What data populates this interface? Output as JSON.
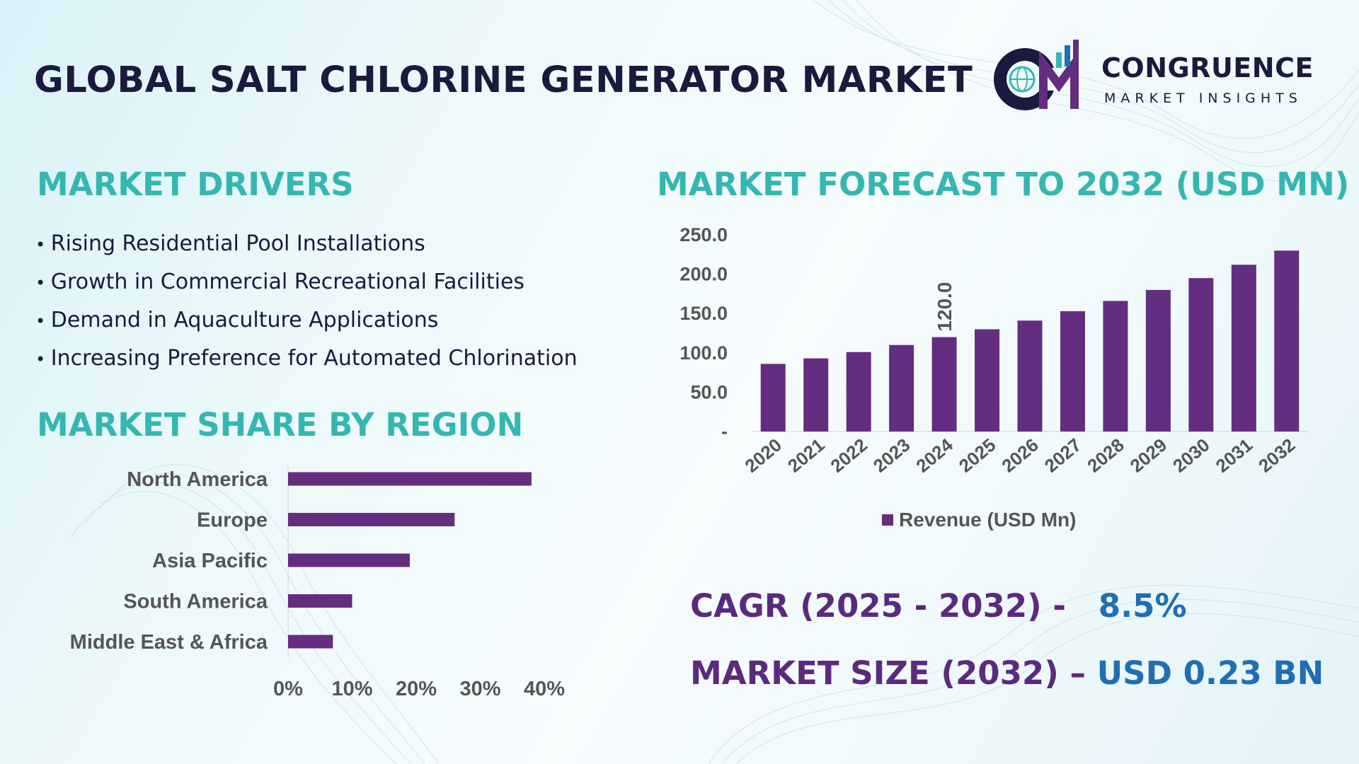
{
  "header": {
    "title": "GLOBAL SALT CHLORINE GENERATOR MARKET",
    "logo_name": "CONGRUENCE",
    "logo_tagline": "MARKET INSIGHTS"
  },
  "drivers": {
    "title": "MARKET DRIVERS",
    "items": [
      "Rising Residential Pool Installations",
      "Growth in Commercial Recreational Facilities",
      "Demand in Aquaculture Applications",
      "Increasing Preference for Automated Chlorination"
    ]
  },
  "forecast": {
    "title": "MARKET FORECAST TO 2032 (USD MN)"
  },
  "region": {
    "title": "MARKET SHARE BY REGION"
  },
  "kpis": {
    "cagr_label": "CAGR (2025 - 2032) -",
    "cagr_value": "8.5%",
    "size_label": "MARKET SIZE (2032) –",
    "size_value": "USD 0.23 BN"
  },
  "colors": {
    "bar": "#642d7f",
    "heading": "#35b7b1",
    "title": "#1a1a3e",
    "kpi_label": "#5b2a7e",
    "kpi_value": "#1f6fb5"
  },
  "chart_data": [
    {
      "type": "bar",
      "title": "MARKET FORECAST TO 2032 (USD MN)",
      "categories": [
        "2020",
        "2021",
        "2022",
        "2023",
        "2024",
        "2025",
        "2026",
        "2027",
        "2028",
        "2029",
        "2030",
        "2031",
        "2032"
      ],
      "series": [
        {
          "name": "Revenue (USD Mn)",
          "values": [
            86,
            93,
            101,
            110,
            120,
            130,
            141,
            153,
            166,
            180,
            195,
            212,
            230
          ]
        }
      ],
      "y_ticks": [
        "-",
        "50.0",
        "100.0",
        "150.0",
        "200.0",
        "250.0"
      ],
      "ylim": [
        0,
        250
      ],
      "data_labels": [
        {
          "category": "2024",
          "text": "120.0"
        }
      ],
      "legend": "bottom"
    },
    {
      "type": "bar",
      "orientation": "horizontal",
      "title": "MARKET SHARE BY REGION",
      "categories": [
        "North America",
        "Europe",
        "Asia Pacific",
        "South America",
        "Middle East & Africa"
      ],
      "values": [
        38,
        26,
        19,
        10,
        7
      ],
      "x_ticks": [
        "0%",
        "10%",
        "20%",
        "30%",
        "40%"
      ],
      "xlim": [
        0,
        40
      ]
    }
  ]
}
